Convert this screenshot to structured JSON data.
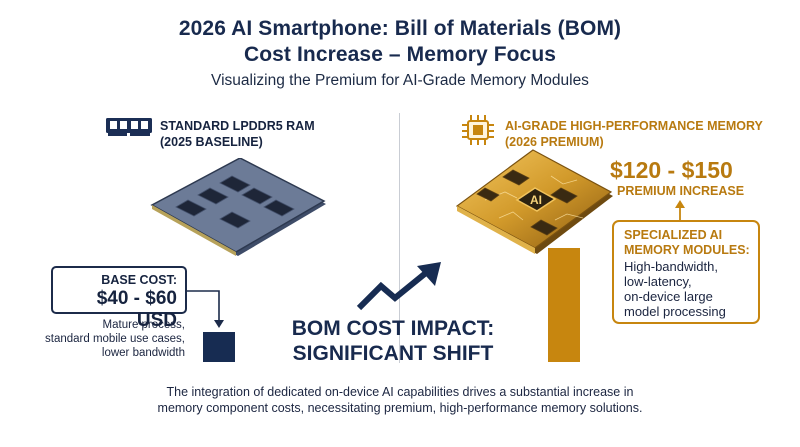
{
  "header": {
    "title_line1": "2026 AI Smartphone: Bill of Materials (BOM)",
    "title_line2": "Cost Increase – Memory Focus",
    "subtitle": "Visualizing the Premium for AI-Grade Memory Modules"
  },
  "standard": {
    "label_line1": "STANDARD LPDDR5 RAM",
    "label_line2": "(2025 BASELINE)",
    "cost_label": "BASE COST:",
    "cost_value": "$40 - $60 USD",
    "desc_line1": "Mature process,",
    "desc_line2": "standard mobile use cases,",
    "desc_line3": "lower bandwidth",
    "icon": "ram-stick-icon",
    "color": "#172c52"
  },
  "center": {
    "impact_line1": "BOM COST IMPACT:",
    "impact_line2": "SIGNIFICANT SHIFT",
    "icon": "trend-up-arrow-icon"
  },
  "ai": {
    "label_line1": "AI-GRADE HIGH-PERFORMANCE MEMORY",
    "label_line2": "(2026 PREMIUM)",
    "chip_text": "AI",
    "premium_value": "$120 - $150",
    "premium_label": "PREMIUM INCREASE",
    "spec_title_line1": "SPECIALIZED AI",
    "spec_title_line2": "MEMORY MODULES:",
    "spec_desc_line1": "High-bandwidth,",
    "spec_desc_line2": "low-latency,",
    "spec_desc_line3": "on-device large",
    "spec_desc_line4": "model processing",
    "icon": "ai-chip-icon",
    "color": "#c7860f"
  },
  "footer": {
    "line1": "The integration of dedicated on-device AI capabilities drives a substantial increase in",
    "line2": "memory component costs, necessitating premium, high-performance memory solutions."
  }
}
